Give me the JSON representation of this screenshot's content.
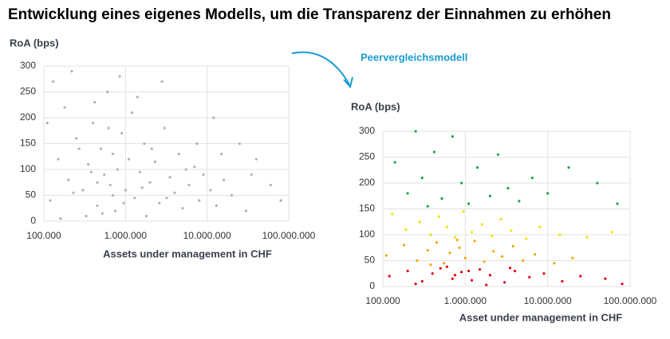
{
  "title": "Entwicklung eines eigenes Modells, um die Transparenz der Einnahmen zu erhöhen",
  "annotation": "Peervergleichsmodell",
  "chart_data": [
    {
      "type": "scatter",
      "y_label": "RoA (bps)",
      "x_label": "Assets under management in CHF",
      "x_scale": "log",
      "grid": true,
      "xlim": [
        100000,
        100000000
      ],
      "xticks": [
        {
          "value": 100000,
          "label": "100.000"
        },
        {
          "value": 1000000,
          "label": "1.000.000"
        },
        {
          "value": 10000000,
          "label": "10.000.000"
        },
        {
          "value": 100000000,
          "label": "100.000.000"
        }
      ],
      "ylim": [
        0,
        300
      ],
      "yticks": [
        0,
        50,
        100,
        150,
        200,
        250,
        300
      ],
      "series": [
        {
          "color": "#a9b5c0",
          "x": [
            120000,
            150000,
            180000,
            200000,
            250000,
            300000,
            350000,
            400000,
            450000,
            500000,
            550000,
            600000,
            650000,
            700000,
            750000,
            800000,
            900000,
            1000000,
            1100000,
            1200000,
            1300000,
            1500000,
            1700000,
            2000000,
            2300000,
            2600000,
            3000000,
            3500000,
            4000000,
            4500000,
            5000000,
            6000000,
            7000000,
            8000000,
            9000000,
            11000000,
            13000000,
            16000000,
            20000000,
            25000000,
            30000000,
            40000000,
            60000000,
            80000000,
            130000,
            220000,
            330000,
            420000,
            520000,
            620000,
            850000,
            1400000,
            1800000,
            2800000,
            15000000,
            12000000,
            35000000,
            110000,
            160000,
            700000,
            950000,
            1600000,
            2100000,
            450000,
            380000,
            270000,
            230000,
            5500000,
            7500000,
            3200000
          ],
          "y": [
            40,
            120,
            220,
            80,
            160,
            60,
            110,
            190,
            30,
            140,
            90,
            250,
            70,
            130,
            20,
            100,
            170,
            60,
            120,
            210,
            45,
            95,
            150,
            75,
            115,
            35,
            180,
            85,
            55,
            130,
            25,
            70,
            105,
            40,
            90,
            60,
            30,
            80,
            50,
            150,
            20,
            120,
            70,
            40,
            270,
            290,
            10,
            230,
            15,
            180,
            280,
            240,
            10,
            270,
            130,
            200,
            90,
            190,
            5,
            50,
            35,
            65,
            140,
            75,
            95,
            140,
            55,
            100,
            150,
            45
          ]
        }
      ]
    },
    {
      "type": "scatter",
      "y_label": "RoA (bps)",
      "x_label": "Asset under management in CHF",
      "x_scale": "log",
      "grid": true,
      "xlim": [
        100000,
        100000000
      ],
      "xticks": [
        {
          "value": 100000,
          "label": "100.000"
        },
        {
          "value": 1000000,
          "label": "1.000.000"
        },
        {
          "value": 10000000,
          "label": "10.000.000"
        },
        {
          "value": 100000000,
          "label": "100.000.000"
        }
      ],
      "ylim": [
        0,
        300
      ],
      "yticks": [
        0,
        50,
        100,
        150,
        200,
        250,
        300
      ],
      "series": [
        {
          "color": "#e30613",
          "x": [
            120000,
            200000,
            300000,
            400000,
            500000,
            700000,
            900000,
            1200000,
            1500000,
            2000000,
            3000000,
            4000000,
            6000000,
            9000000,
            15000000,
            25000000,
            50000000,
            80000000,
            250000,
            600000,
            1800000,
            3500000,
            750000,
            1100000
          ],
          "y": [
            20,
            30,
            10,
            25,
            35,
            15,
            28,
            12,
            33,
            22,
            8,
            30,
            18,
            25,
            10,
            20,
            15,
            5,
            5,
            38,
            3,
            36,
            22,
            30
          ]
        },
        {
          "color": "#f5a800",
          "x": [
            110000,
            180000,
            260000,
            350000,
            450000,
            550000,
            650000,
            850000,
            1000000,
            1300000,
            1700000,
            2200000,
            2800000,
            3800000,
            5000000,
            7000000,
            12000000,
            20000000,
            380000,
            800000
          ],
          "y": [
            60,
            80,
            50,
            70,
            85,
            45,
            65,
            75,
            55,
            88,
            48,
            68,
            58,
            78,
            50,
            62,
            45,
            55,
            42,
            90
          ]
        },
        {
          "color": "#ece600",
          "x": [
            130000,
            190000,
            280000,
            380000,
            480000,
            600000,
            750000,
            950000,
            1200000,
            1600000,
            2100000,
            2700000,
            3600000,
            5500000,
            8000000,
            14000000,
            30000000,
            60000000
          ],
          "y": [
            140,
            110,
            125,
            100,
            135,
            115,
            95,
            145,
            105,
            120,
            98,
            130,
            108,
            92,
            115,
            100,
            95,
            105
          ]
        },
        {
          "color": "#1aa64a",
          "x": [
            140000,
            200000,
            300000,
            420000,
            520000,
            700000,
            900000,
            1100000,
            1400000,
            2000000,
            2500000,
            3300000,
            4500000,
            6500000,
            10000000,
            18000000,
            40000000,
            70000000,
            250000,
            350000
          ],
          "y": [
            240,
            180,
            210,
            260,
            170,
            290,
            200,
            160,
            230,
            175,
            255,
            190,
            165,
            210,
            180,
            230,
            200,
            160,
            300,
            155
          ]
        }
      ]
    }
  ]
}
